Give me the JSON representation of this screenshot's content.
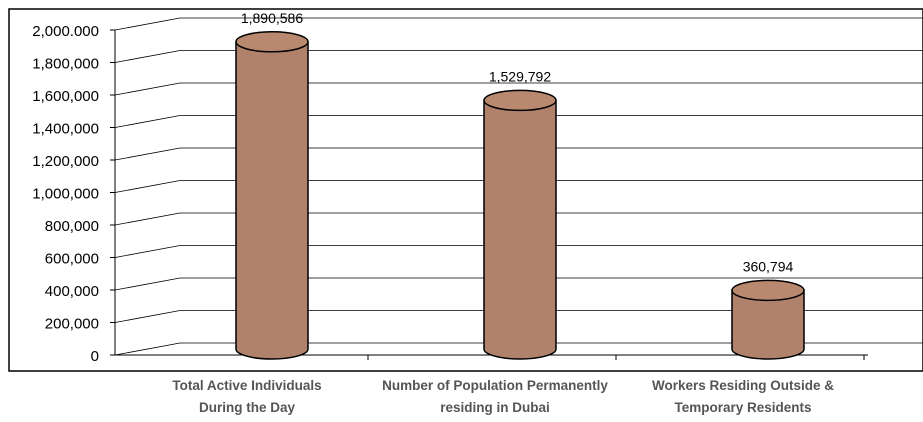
{
  "chart_data": {
    "type": "bar",
    "title": "",
    "xlabel": "",
    "ylabel": "",
    "ylim": [
      0,
      2000000
    ],
    "grid": true,
    "legend": "none",
    "tick_labels": [
      "0",
      "200,000",
      "400,000",
      "600,000",
      "800,000",
      "1,000,000",
      "1,200,000",
      "1,400,000",
      "1,600,000",
      "1,800,000",
      "2,000.000"
    ],
    "categories": [
      [
        "Total Active Individuals",
        "During the Day"
      ],
      [
        "Number of Population Permanently",
        "residing in Dubai"
      ],
      [
        "Workers Residing Outside &",
        "Temporary Residents"
      ]
    ],
    "values": [
      1890586,
      1529792,
      360794
    ],
    "data_labels": [
      "1,890,586",
      "1,529,792",
      "360,794"
    ],
    "colors": {
      "bar_fill": "#b0826c",
      "bar_top": "#b8896f",
      "outline": "#000000",
      "grid": "#000000"
    }
  }
}
